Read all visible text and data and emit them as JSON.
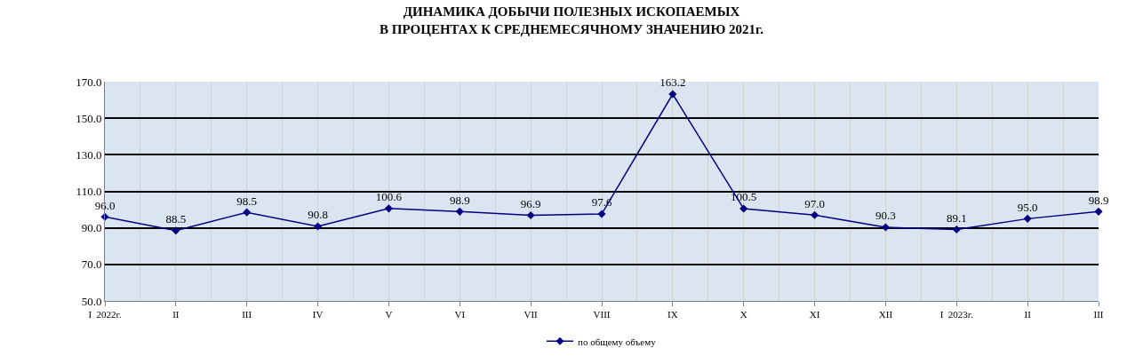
{
  "chart_data": {
    "type": "line",
    "title": "ДИНАМИКА ДОБЫЧИ ПОЛЕЗНЫХ ИСКОПАЕМЫХ\nВ ПРОЦЕНТАХ К СРЕДНЕМЕСЯЧНОМУ ЗНАЧЕНИЮ 2021г.",
    "categories": [
      "I  2022г.",
      "II",
      "III",
      "IV",
      "V",
      "VI",
      "VII",
      "VIII",
      "IX",
      "X",
      "XI",
      "XII",
      "I  2023г.",
      "II",
      "III"
    ],
    "series": [
      {
        "name": "по общему объему",
        "color": "#000080",
        "values": [
          96.0,
          88.5,
          98.5,
          90.8,
          100.6,
          98.9,
          96.9,
          97.6,
          163.2,
          100.5,
          97.0,
          90.3,
          89.1,
          95.0,
          98.9
        ],
        "value_labels": [
          "96.0",
          "88.5",
          "98.5",
          "90.8",
          "100.6",
          "98.9",
          "96.9",
          "97.6",
          "163.2",
          "100.5",
          "97.0",
          "90.3",
          "89.1",
          "95.0",
          "98.9"
        ]
      }
    ],
    "ylim": [
      50,
      170
    ],
    "yticks": [
      {
        "value": 50,
        "label": "50.0"
      },
      {
        "value": 70,
        "label": "70.0"
      },
      {
        "value": 90,
        "label": "90.0"
      },
      {
        "value": 110,
        "label": "110.0"
      },
      {
        "value": 130,
        "label": "130.0"
      },
      {
        "value": 150,
        "label": "150.0"
      },
      {
        "value": 170,
        "label": "170.0"
      }
    ],
    "grid": true,
    "legend": "bottom",
    "marker": "diamond",
    "line_style": "solid"
  }
}
